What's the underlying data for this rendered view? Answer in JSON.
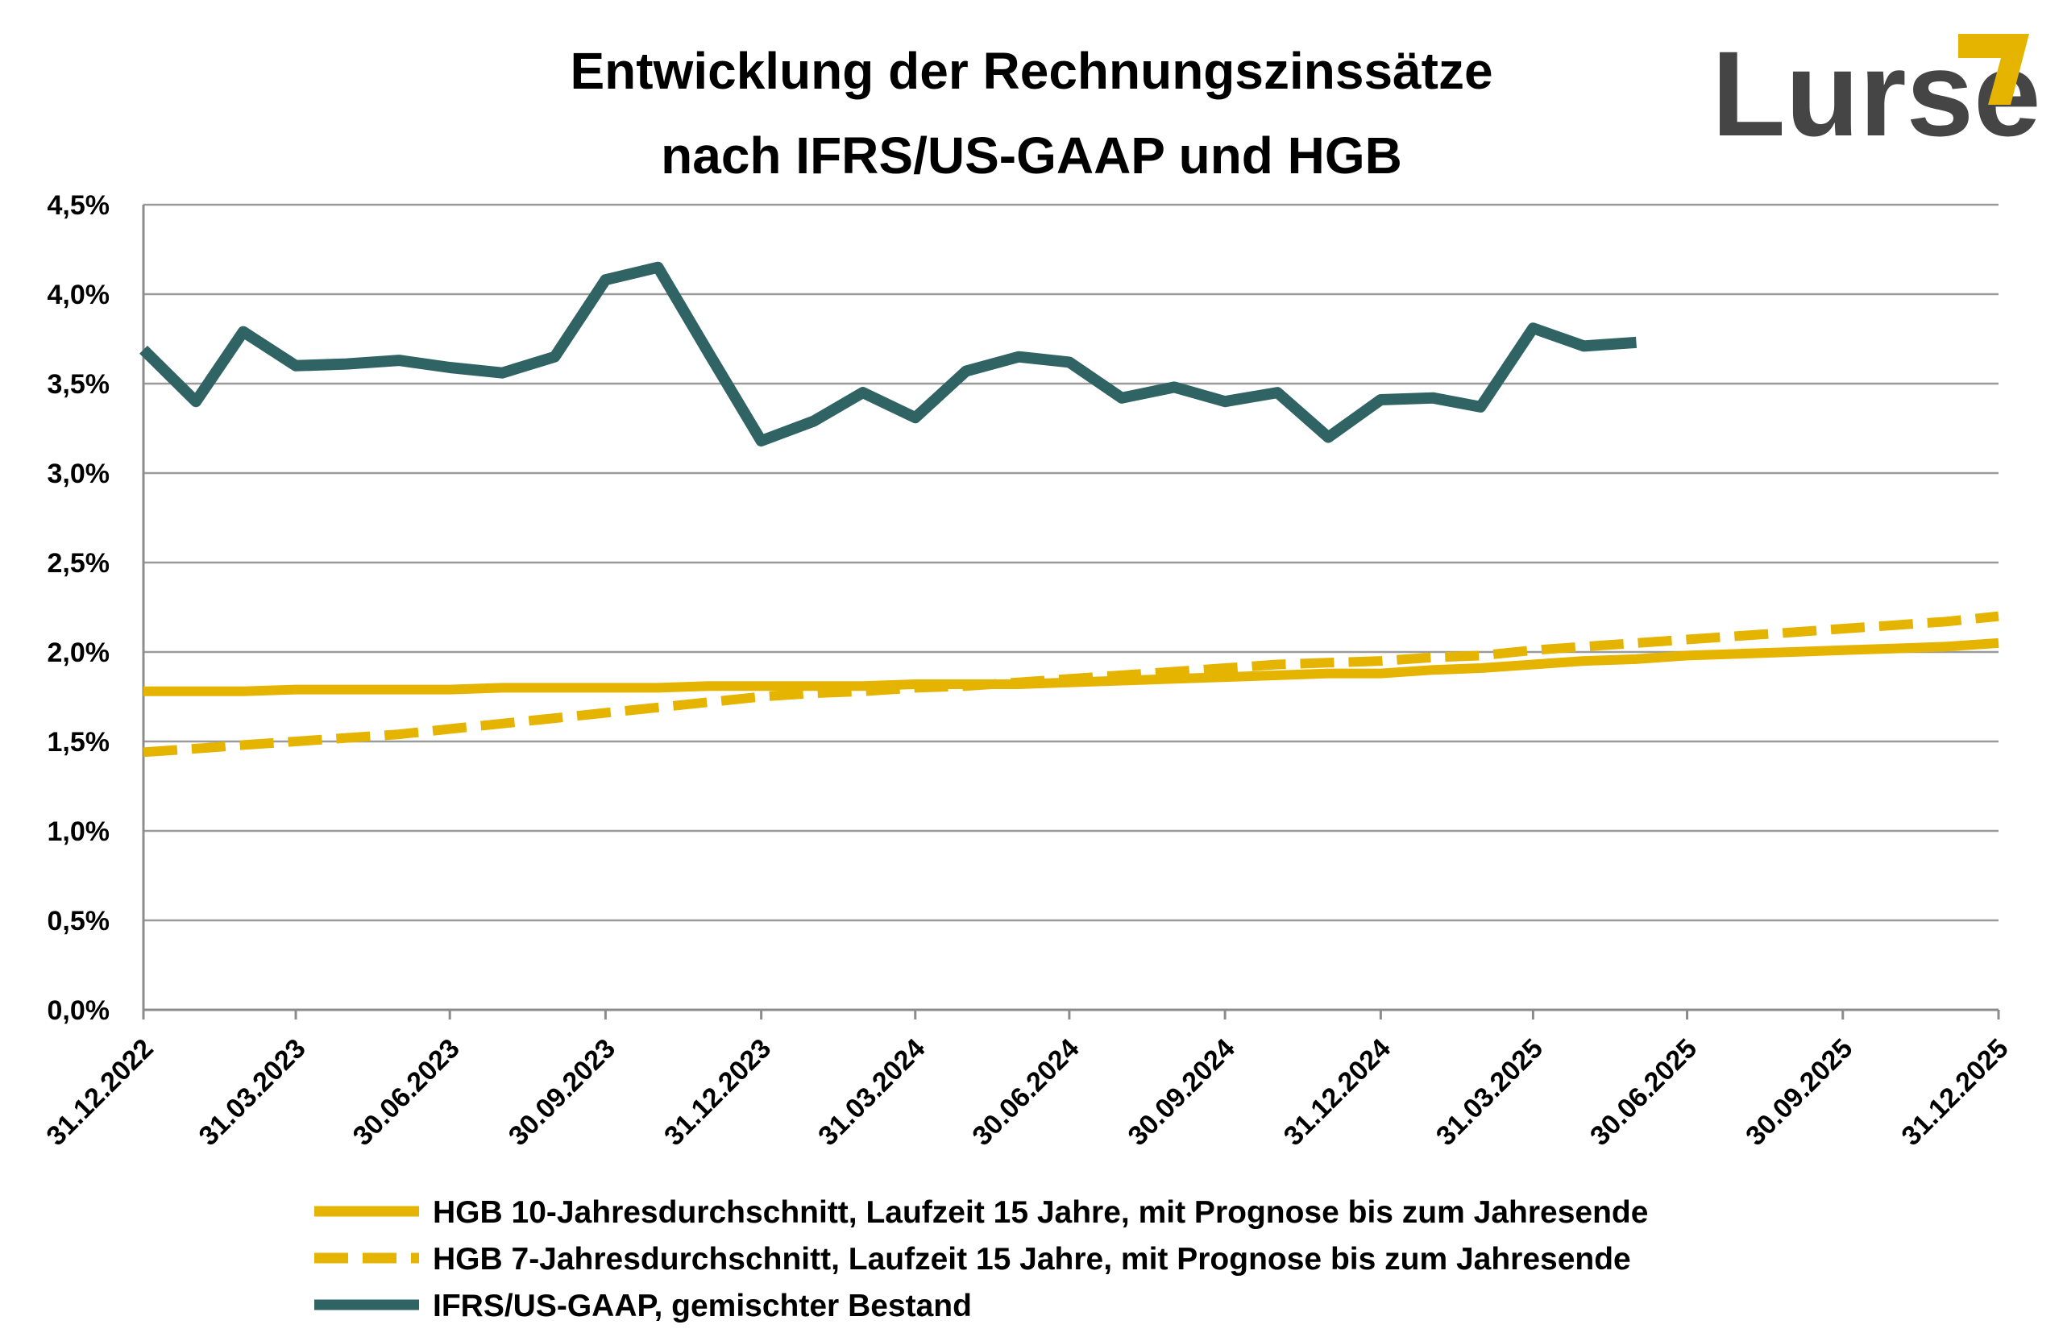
{
  "logo": {
    "text": "Lurse",
    "accent_color": "#E5B400"
  },
  "chart_data": {
    "type": "line",
    "title": [
      "Entwicklung der Rechnungszinssätze",
      "nach IFRS/US-GAAP und HGB"
    ],
    "ylim": [
      0.0,
      4.5
    ],
    "y_ticks": [
      0.0,
      0.5,
      1.0,
      1.5,
      2.0,
      2.5,
      3.0,
      3.5,
      4.0,
      4.5
    ],
    "y_tick_labels": [
      "0,0%",
      "0,5%",
      "1,0%",
      "1,5%",
      "2,0%",
      "2,5%",
      "3,0%",
      "3,5%",
      "4,0%",
      "4,5%"
    ],
    "x_ticks": [
      "31.12.2022",
      "31.03.2023",
      "30.06.2023",
      "30.09.2023",
      "31.12.2023",
      "31.03.2024",
      "30.06.2024",
      "30.09.2024",
      "31.12.2024",
      "31.03.2025",
      "30.06.2025",
      "30.09.2025",
      "31.12.2025"
    ],
    "grid": true,
    "legend_position": "bottom",
    "series": [
      {
        "name": "HGB 10-Jahresdurchschnitt, Laufzeit 15 Jahre, mit Prognose bis zum Jahresende",
        "color": "#E5B400",
        "style": "solid",
        "x": [
          "31.12.2022",
          "31.01.2023",
          "28.02.2023",
          "31.03.2023",
          "30.04.2023",
          "31.05.2023",
          "30.06.2023",
          "31.07.2023",
          "31.08.2023",
          "30.09.2023",
          "31.10.2023",
          "30.11.2023",
          "31.12.2023",
          "31.01.2024",
          "29.02.2024",
          "31.03.2024",
          "30.04.2024",
          "31.05.2024",
          "30.06.2024",
          "31.07.2024",
          "31.08.2024",
          "30.09.2024",
          "31.10.2024",
          "30.11.2024",
          "31.12.2024",
          "31.01.2025",
          "28.02.2025",
          "31.03.2025",
          "30.04.2025",
          "31.05.2025",
          "30.06.2025",
          "31.07.2025",
          "31.08.2025",
          "30.09.2025",
          "31.10.2025",
          "30.11.2025",
          "31.12.2025"
        ],
        "values": [
          1.78,
          1.78,
          1.78,
          1.79,
          1.79,
          1.79,
          1.79,
          1.8,
          1.8,
          1.8,
          1.8,
          1.81,
          1.81,
          1.81,
          1.81,
          1.82,
          1.82,
          1.82,
          1.83,
          1.84,
          1.85,
          1.86,
          1.87,
          1.88,
          1.88,
          1.9,
          1.91,
          1.93,
          1.95,
          1.96,
          1.98,
          1.99,
          2.0,
          2.01,
          2.02,
          2.03,
          2.05
        ]
      },
      {
        "name": "HGB 7-Jahresdurchschnitt, Laufzeit 15 Jahre, mit Prognose bis zum Jahresende",
        "color": "#E5B400",
        "style": "dashed",
        "x": [
          "31.12.2022",
          "31.01.2023",
          "28.02.2023",
          "31.03.2023",
          "30.04.2023",
          "31.05.2023",
          "30.06.2023",
          "31.07.2023",
          "31.08.2023",
          "30.09.2023",
          "31.10.2023",
          "30.11.2023",
          "31.12.2023",
          "31.01.2024",
          "29.02.2024",
          "31.03.2024",
          "30.04.2024",
          "31.05.2024",
          "30.06.2024",
          "31.07.2024",
          "31.08.2024",
          "30.09.2024",
          "31.10.2024",
          "30.11.2024",
          "31.12.2024",
          "31.01.2025",
          "28.02.2025",
          "31.03.2025",
          "30.04.2025",
          "31.05.2025",
          "30.06.2025",
          "31.07.2025",
          "31.08.2025",
          "30.09.2025",
          "31.10.2025",
          "30.11.2025",
          "31.12.2025"
        ],
        "values": [
          1.44,
          1.46,
          1.48,
          1.5,
          1.52,
          1.54,
          1.57,
          1.6,
          1.63,
          1.66,
          1.69,
          1.72,
          1.75,
          1.77,
          1.78,
          1.8,
          1.81,
          1.83,
          1.85,
          1.87,
          1.89,
          1.91,
          1.93,
          1.94,
          1.95,
          1.97,
          1.98,
          2.01,
          2.03,
          2.05,
          2.07,
          2.09,
          2.11,
          2.13,
          2.15,
          2.17,
          2.2
        ]
      },
      {
        "name": "IFRS/US-GAAP, gemischter Bestand",
        "color": "#306363",
        "style": "solid",
        "x": [
          "31.12.2022",
          "31.01.2023",
          "28.02.2023",
          "31.03.2023",
          "30.04.2023",
          "31.05.2023",
          "30.06.2023",
          "31.07.2023",
          "31.08.2023",
          "30.09.2023",
          "31.10.2023",
          "30.11.2023",
          "31.12.2023",
          "31.01.2024",
          "29.02.2024",
          "31.03.2024",
          "30.04.2024",
          "31.05.2024",
          "30.06.2024",
          "31.07.2024",
          "31.08.2024",
          "30.09.2024",
          "31.10.2024",
          "30.11.2024",
          "31.12.2024",
          "31.01.2025",
          "28.02.2025",
          "31.03.2025",
          "30.04.2025",
          "31.05.2025"
        ],
        "values": [
          3.69,
          3.4,
          3.79,
          3.6,
          3.61,
          3.63,
          3.59,
          3.56,
          3.65,
          4.08,
          4.15,
          3.67,
          3.18,
          3.29,
          3.45,
          3.31,
          3.57,
          3.65,
          3.62,
          3.42,
          3.48,
          3.4,
          3.45,
          3.2,
          3.41,
          3.42,
          3.37,
          3.81,
          3.71,
          3.73
        ]
      }
    ]
  }
}
